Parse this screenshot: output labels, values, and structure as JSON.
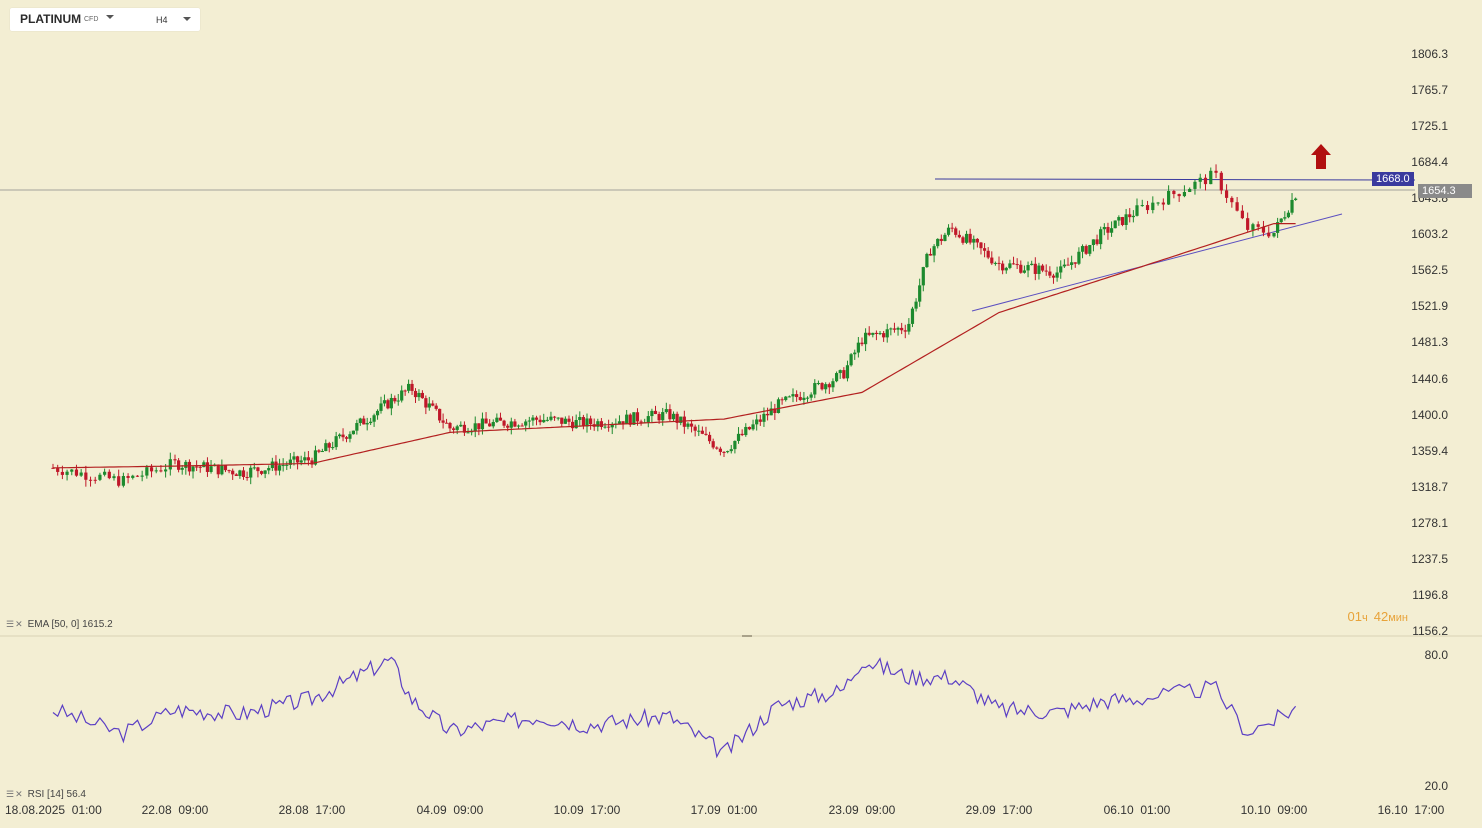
{
  "toolbar": {
    "symbol": "PLATINUM",
    "symbol_suffix": "CFD",
    "timeframe": "H4"
  },
  "colors": {
    "background": "#f3eed3",
    "bull": "#1d8a2e",
    "bear": "#c0182a",
    "ema": "#b32020",
    "rsi": "#5b3fc4",
    "trendline": "#5b4fc0",
    "current_price_tag": "#8a8a8a",
    "level_tag": "#3a3a9e",
    "arrow": "#b10f0f",
    "countdown": "#e8a33a"
  },
  "icons": {
    "arrow": "up-arrow-icon",
    "legend": "drag-handle-icon"
  },
  "price_axis": {
    "ticks": [
      "1806.3",
      "1765.7",
      "1725.1",
      "1684.4",
      "1643.8",
      "1603.2",
      "1562.5",
      "1521.9",
      "1481.3",
      "1440.6",
      "1400.0",
      "1359.4",
      "1318.7",
      "1278.1",
      "1237.5",
      "1196.8",
      "1156.2"
    ],
    "current_price": "1654.3",
    "level_price": "1668.0"
  },
  "rsi_axis": {
    "ticks": [
      "80.0",
      "20.0"
    ]
  },
  "time_axis": {
    "labels": [
      "18.08.2025  01:00",
      "22.08  09:00",
      "28.08  17:00",
      "04.09  09:00",
      "10.09  17:00",
      "17.09  01:00",
      "23.09  09:00",
      "29.09  17:00",
      "06.10  01:00",
      "10.10  09:00",
      "16.10  17:00"
    ]
  },
  "legend": {
    "ema": "EMA [50, 0]  1615.2",
    "rsi": "RSI [14]  56.4"
  },
  "countdown": {
    "hours": "01",
    "hours_unit": "ч",
    "minutes": "42",
    "minutes_unit": "мин"
  },
  "chart_data": {
    "type": "candlestick",
    "instrument": "PLATINUM CFD",
    "timeframe": "H4",
    "ylim": [
      1156.2,
      1806.3
    ],
    "grid": false,
    "x_start": "18.08.2025 01:00",
    "x_end": "16.10 17:00",
    "price_anchors": [
      {
        "time": "18.08.2025 01:00",
        "close": 1340
      },
      {
        "time": "20.08",
        "close": 1325
      },
      {
        "time": "22.08 09:00",
        "close": 1345
      },
      {
        "time": "25.08",
        "close": 1335
      },
      {
        "time": "28.08 17:00",
        "close": 1350
      },
      {
        "time": "01.09",
        "close": 1415
      },
      {
        "time": "02.09",
        "close": 1430
      },
      {
        "time": "04.09 09:00",
        "close": 1385
      },
      {
        "time": "08.09",
        "close": 1395
      },
      {
        "time": "10.09 17:00",
        "close": 1390
      },
      {
        "time": "14.09",
        "close": 1400
      },
      {
        "time": "17.09 01:00",
        "close": 1360
      },
      {
        "time": "19.09",
        "close": 1410
      },
      {
        "time": "22.09",
        "close": 1445
      },
      {
        "time": "23.09 09:00",
        "close": 1485
      },
      {
        "time": "25.09",
        "close": 1500
      },
      {
        "time": "26.09",
        "close": 1585
      },
      {
        "time": "27.09",
        "close": 1610
      },
      {
        "time": "29.09 17:00",
        "close": 1570
      },
      {
        "time": "02.10",
        "close": 1560
      },
      {
        "time": "04.10",
        "close": 1605
      },
      {
        "time": "06.10 01:00",
        "close": 1630
      },
      {
        "time": "08.10",
        "close": 1670
      },
      {
        "time": "09.10",
        "close": 1610
      },
      {
        "time": "10.10 09:00",
        "close": 1605
      },
      {
        "time": "11.10",
        "close": 1654.3
      }
    ],
    "ema": {
      "name": "EMA [50, 0]",
      "last": 1615.2,
      "anchors": [
        {
          "time": "18.08.2025 01:00",
          "value": 1340
        },
        {
          "time": "28.08 17:00",
          "value": 1345
        },
        {
          "time": "04.09 09:00",
          "value": 1380
        },
        {
          "time": "17.09 01:00",
          "value": 1395
        },
        {
          "time": "23.09 09:00",
          "value": 1425
        },
        {
          "time": "29.09 17:00",
          "value": 1515
        },
        {
          "time": "06.10 01:00",
          "value": 1565
        },
        {
          "time": "10.10 09:00",
          "value": 1615.2
        }
      ]
    },
    "horizontal_level": 1668.0,
    "trendline": {
      "from": {
        "time": "29.09 09:00",
        "value": 1523
      },
      "to": {
        "time": "13.10",
        "value": 1625
      }
    },
    "rsi": {
      "name": "RSI [14]",
      "last": 56.4,
      "ylim": [
        20,
        80
      ],
      "anchors": [
        {
          "time": "18.08.2025 01:00",
          "value": 55
        },
        {
          "time": "20.08",
          "value": 44
        },
        {
          "time": "22.08 09:00",
          "value": 55
        },
        {
          "time": "25.08",
          "value": 53
        },
        {
          "time": "28.08 17:00",
          "value": 60
        },
        {
          "time": "01.09",
          "value": 78
        },
        {
          "time": "02.09",
          "value": 60
        },
        {
          "time": "04.09 09:00",
          "value": 45
        },
        {
          "time": "08.09",
          "value": 52
        },
        {
          "time": "10.09 17:00",
          "value": 48
        },
        {
          "time": "14.09",
          "value": 52
        },
        {
          "time": "17.09 01:00",
          "value": 35
        },
        {
          "time": "19.09",
          "value": 57
        },
        {
          "time": "22.09",
          "value": 64
        },
        {
          "time": "23.09 09:00",
          "value": 78
        },
        {
          "time": "25.09",
          "value": 70
        },
        {
          "time": "27.09",
          "value": 70
        },
        {
          "time": "29.09 17:00",
          "value": 55
        },
        {
          "time": "02.10",
          "value": 54
        },
        {
          "time": "04.10",
          "value": 59
        },
        {
          "time": "06.10 01:00",
          "value": 60
        },
        {
          "time": "08.10",
          "value": 65
        },
        {
          "time": "09.10",
          "value": 45
        },
        {
          "time": "10.10 09:00",
          "value": 50
        },
        {
          "time": "11.10",
          "value": 56.4
        }
      ]
    }
  }
}
